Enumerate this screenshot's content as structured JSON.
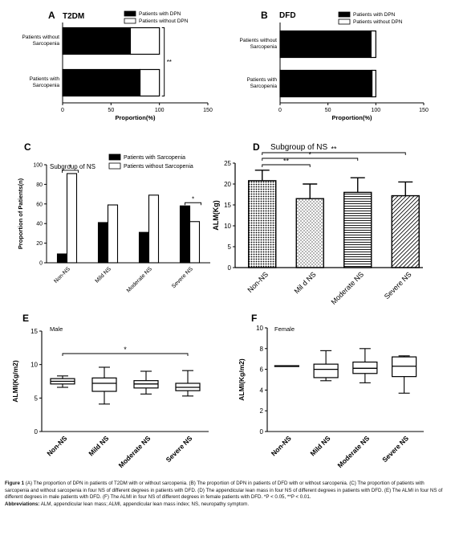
{
  "chart_data": [
    {
      "panel": "A",
      "type": "bar",
      "orientation": "horizontal",
      "stacked": true,
      "title": "T2DM",
      "categories": [
        "Patients without Sarcopenia",
        "Patients with Sarcopenia"
      ],
      "category_lines": [
        [
          "Patients without",
          "Sarcopenia"
        ],
        [
          "Patients with",
          "Sarcopenia"
        ]
      ],
      "series": [
        {
          "name": "Patients with DPN",
          "values": [
            70,
            80
          ],
          "color": "#000000"
        },
        {
          "name": "Patients without DPN",
          "values": [
            30,
            20
          ],
          "color": "#ffffff"
        }
      ],
      "xlabel": "Proportion(%)",
      "xlim": [
        0,
        150
      ],
      "xticks": [
        "0",
        "50",
        "100",
        "150"
      ],
      "significance": "**",
      "legend_position": "top-right"
    },
    {
      "panel": "B",
      "type": "bar",
      "orientation": "horizontal",
      "stacked": true,
      "title": "DFD",
      "categories": [
        "Patients without Sarcopenia",
        "Patients with Sarcopenia"
      ],
      "category_lines": [
        [
          "Patients without",
          "Sarcopenia"
        ],
        [
          "Patients with",
          "Sarcopenia"
        ]
      ],
      "series": [
        {
          "name": "Patients with DPN",
          "values": [
            95,
            96
          ],
          "color": "#000000"
        },
        {
          "name": "Patients without DPN",
          "values": [
            5,
            4
          ],
          "color": "#ffffff"
        }
      ],
      "xlabel": "Proportion(%)",
      "xlim": [
        0,
        150
      ],
      "xticks": [
        "0",
        "50",
        "100",
        "150"
      ],
      "legend_position": "top-right"
    },
    {
      "panel": "C",
      "type": "bar",
      "title": "Subgroup of NS",
      "categories": [
        "Non-NS",
        "Mild NS",
        "Moderate NS",
        "Severe NS"
      ],
      "series": [
        {
          "name": "Patients with Sarcopenia",
          "values": [
            9,
            41,
            31,
            58
          ],
          "color": "#000000"
        },
        {
          "name": "Patients without Sarcopenia",
          "values": [
            91,
            59,
            69,
            42
          ],
          "color": "#ffffff"
        }
      ],
      "ylabel": "Proportion of Patients(n)",
      "ylim": [
        0,
        100
      ],
      "yticks": [
        "0",
        "20",
        "40",
        "60",
        "80",
        "100"
      ],
      "significance": [
        {
          "label": "*",
          "category": "Non-NS"
        },
        {
          "label": "*",
          "category": "Severe NS"
        }
      ],
      "legend_position": "top-right"
    },
    {
      "panel": "D",
      "type": "bar",
      "title": "Subgroup of NS",
      "categories": [
        "Non-NS",
        "Mil d NS",
        "Moderate NS",
        "Severe NS"
      ],
      "values": [
        20.8,
        16.5,
        18.0,
        17.2
      ],
      "error": [
        2.5,
        3.5,
        3.5,
        3.3
      ],
      "patterns": [
        "dots-dense",
        "dots-sparse",
        "horizontal-lines",
        "diagonal-lines"
      ],
      "ylabel": "ALM(Kg)",
      "ylim": [
        0,
        25
      ],
      "yticks": [
        "0",
        "5",
        "10",
        "15",
        "20",
        "25"
      ],
      "significance": [
        {
          "label": "**",
          "from": "Non-NS",
          "to": "Mil d NS"
        },
        {
          "label": "*",
          "from": "Non-NS",
          "to": "Moderate NS"
        },
        {
          "label": "**",
          "from": "Non-NS",
          "to": "Severe NS"
        }
      ]
    },
    {
      "panel": "E",
      "type": "box",
      "title": "Male",
      "categories": [
        "Non-NS",
        "Mild NS",
        "Moderate NS",
        "Severe NS"
      ],
      "boxes": [
        {
          "min": 6.6,
          "q1": 7.1,
          "median": 7.5,
          "q3": 7.9,
          "max": 8.3
        },
        {
          "min": 4.1,
          "q1": 6.0,
          "median": 7.2,
          "q3": 8.0,
          "max": 9.6
        },
        {
          "min": 5.6,
          "q1": 6.5,
          "median": 7.1,
          "q3": 7.6,
          "max": 9.0
        },
        {
          "min": 5.3,
          "q1": 6.1,
          "median": 6.6,
          "q3": 7.2,
          "max": 9.1
        }
      ],
      "ylabel": "ALMI(Kg/m2)",
      "ylim": [
        0,
        15
      ],
      "yticks": [
        "0",
        "5",
        "10",
        "15"
      ],
      "significance": [
        {
          "label": "*",
          "from": "Non-NS",
          "to": "Severe NS"
        }
      ]
    },
    {
      "panel": "F",
      "type": "box",
      "title": "Female",
      "categories": [
        "Non-NS",
        "Mild NS",
        "Moderate NS",
        "Severe NS"
      ],
      "boxes": [
        {
          "min": 6.3,
          "q1": 6.3,
          "median": 6.3,
          "q3": 6.35,
          "max": 6.35
        },
        {
          "min": 4.9,
          "q1": 5.2,
          "median": 6.0,
          "q3": 6.5,
          "max": 7.8
        },
        {
          "min": 4.7,
          "q1": 5.6,
          "median": 6.1,
          "q3": 6.7,
          "max": 8.0
        },
        {
          "min": 3.7,
          "q1": 5.3,
          "median": 6.3,
          "q3": 7.2,
          "max": 7.3
        }
      ],
      "ylabel": "ALMI(Kg/m2)",
      "ylim": [
        0,
        10
      ],
      "yticks": [
        "0",
        "2",
        "4",
        "6",
        "8",
        "10"
      ]
    }
  ],
  "caption": {
    "figure_label": "Figure 1",
    "text": "(A) The proportion of DPN in patients of T2DM with or without sarcopenia. (B) The proportion of DPN in patients of DFD with or without sarcopenia. (C) The proportion of patients with sarcopenia and without sarcopenia in four NS of different degrees in patients with DFD. (D) The appendicular lean mass in four NS of different degrees in patients with DFD. (E) The ALMI in four NS of different degrees in male patients with DFD. (F) The ALMI in four NS of different degrees in female patients with DFD. *P < 0.05, **P < 0.01.",
    "abbrev_label": "Abbreviations:",
    "abbrev_text": "ALM, appendicular lean mass; ALMI, appendicular lean mass index; NS, neuropathy symptom."
  }
}
